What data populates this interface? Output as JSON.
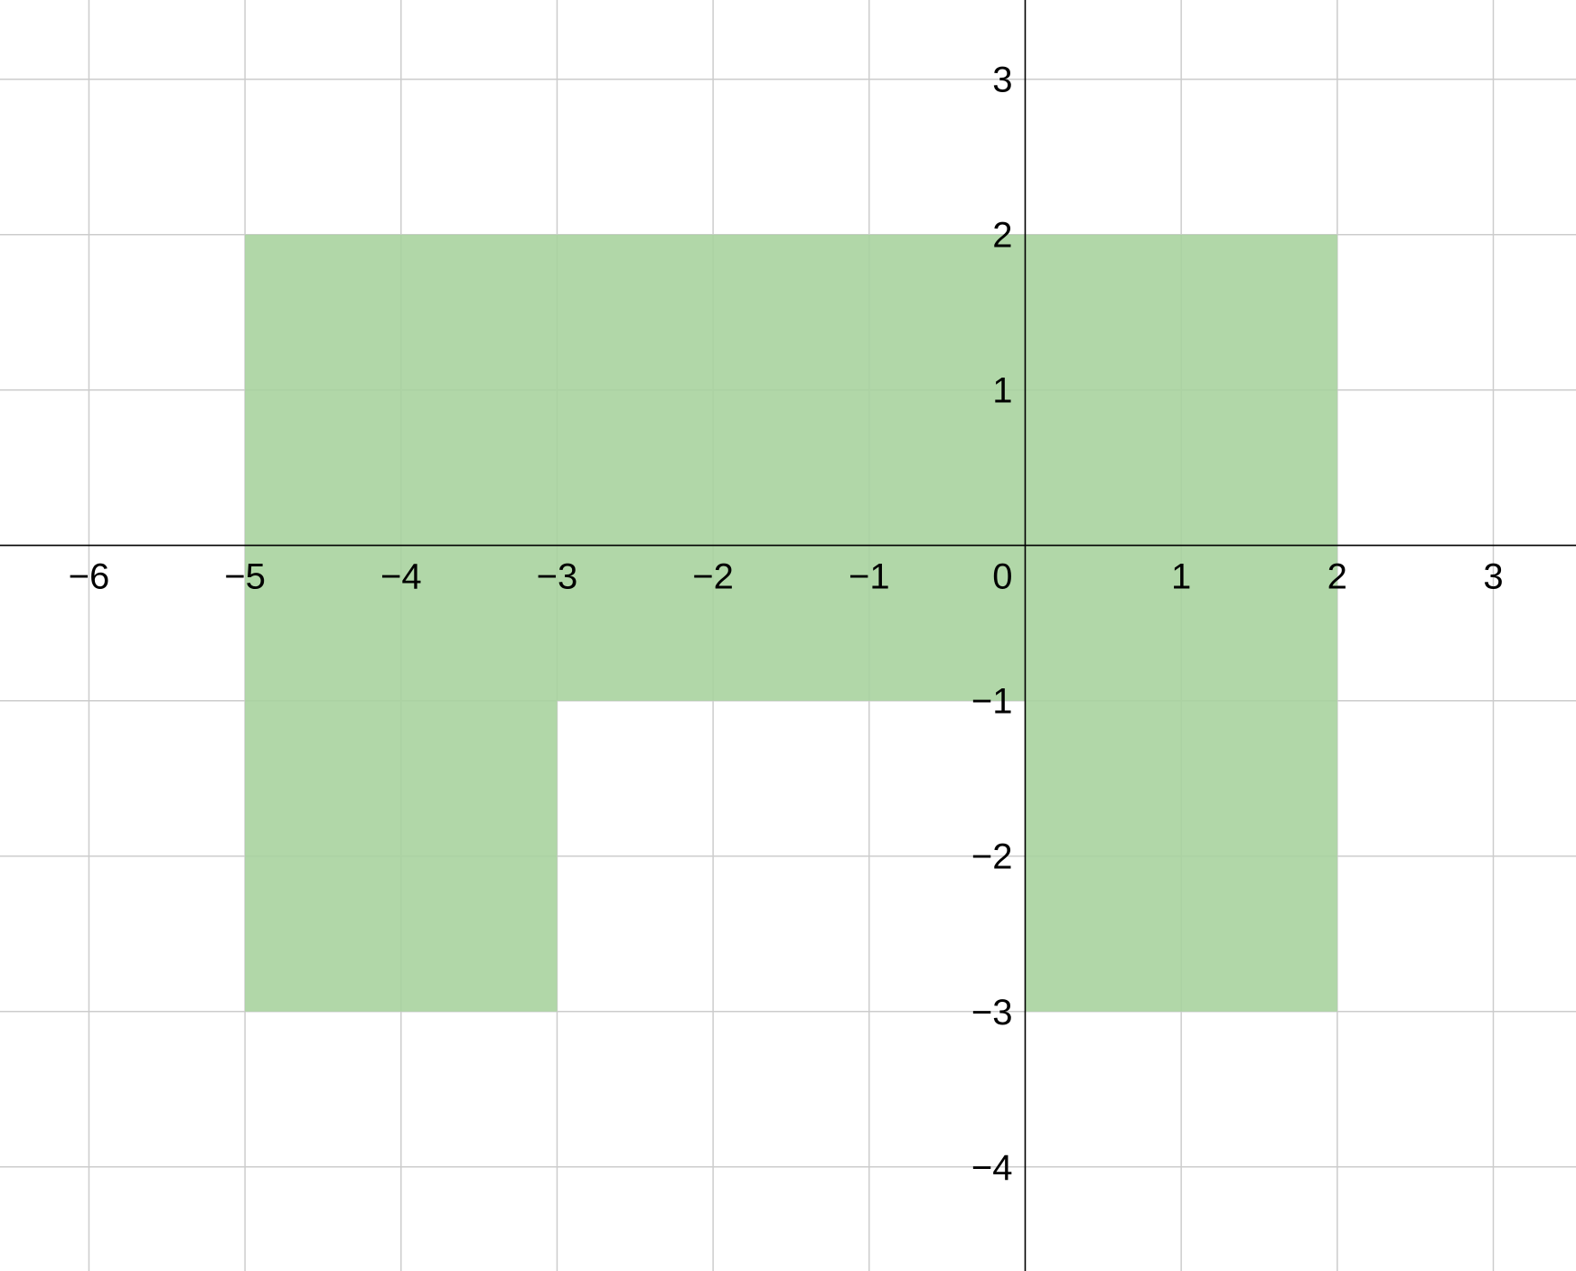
{
  "chart_data": {
    "type": "region",
    "xlim": [
      -6.57,
      3.53
    ],
    "ylim": [
      -4.67,
      3.51
    ],
    "grid": true,
    "x_ticks": [
      {
        "value": -6,
        "label": "−6"
      },
      {
        "value": -5,
        "label": "−5"
      },
      {
        "value": -4,
        "label": "−4"
      },
      {
        "value": -3,
        "label": "−3"
      },
      {
        "value": -2,
        "label": "−2"
      },
      {
        "value": -1,
        "label": "−1"
      },
      {
        "value": 1,
        "label": "1"
      },
      {
        "value": 2,
        "label": "2"
      },
      {
        "value": 3,
        "label": "3"
      }
    ],
    "y_ticks": [
      {
        "value": 3,
        "label": "3"
      },
      {
        "value": 2,
        "label": "2"
      },
      {
        "value": 1,
        "label": "1"
      },
      {
        "value": -1,
        "label": "−1"
      },
      {
        "value": -2,
        "label": "−2"
      },
      {
        "value": -3,
        "label": "−3"
      },
      {
        "value": -4,
        "label": "−4"
      }
    ],
    "origin_label": "0",
    "shaded_region": {
      "fill_color": "#a8d39f",
      "vertices": [
        [
          -5,
          2
        ],
        [
          2,
          2
        ],
        [
          2,
          -3
        ],
        [
          0,
          -3
        ],
        [
          0,
          -1
        ],
        [
          -3,
          -1
        ],
        [
          -3,
          -3
        ],
        [
          -5,
          -3
        ]
      ]
    },
    "colors": {
      "grid": "#cccccc",
      "axes": "#000000",
      "region": "#a8d39f"
    }
  }
}
